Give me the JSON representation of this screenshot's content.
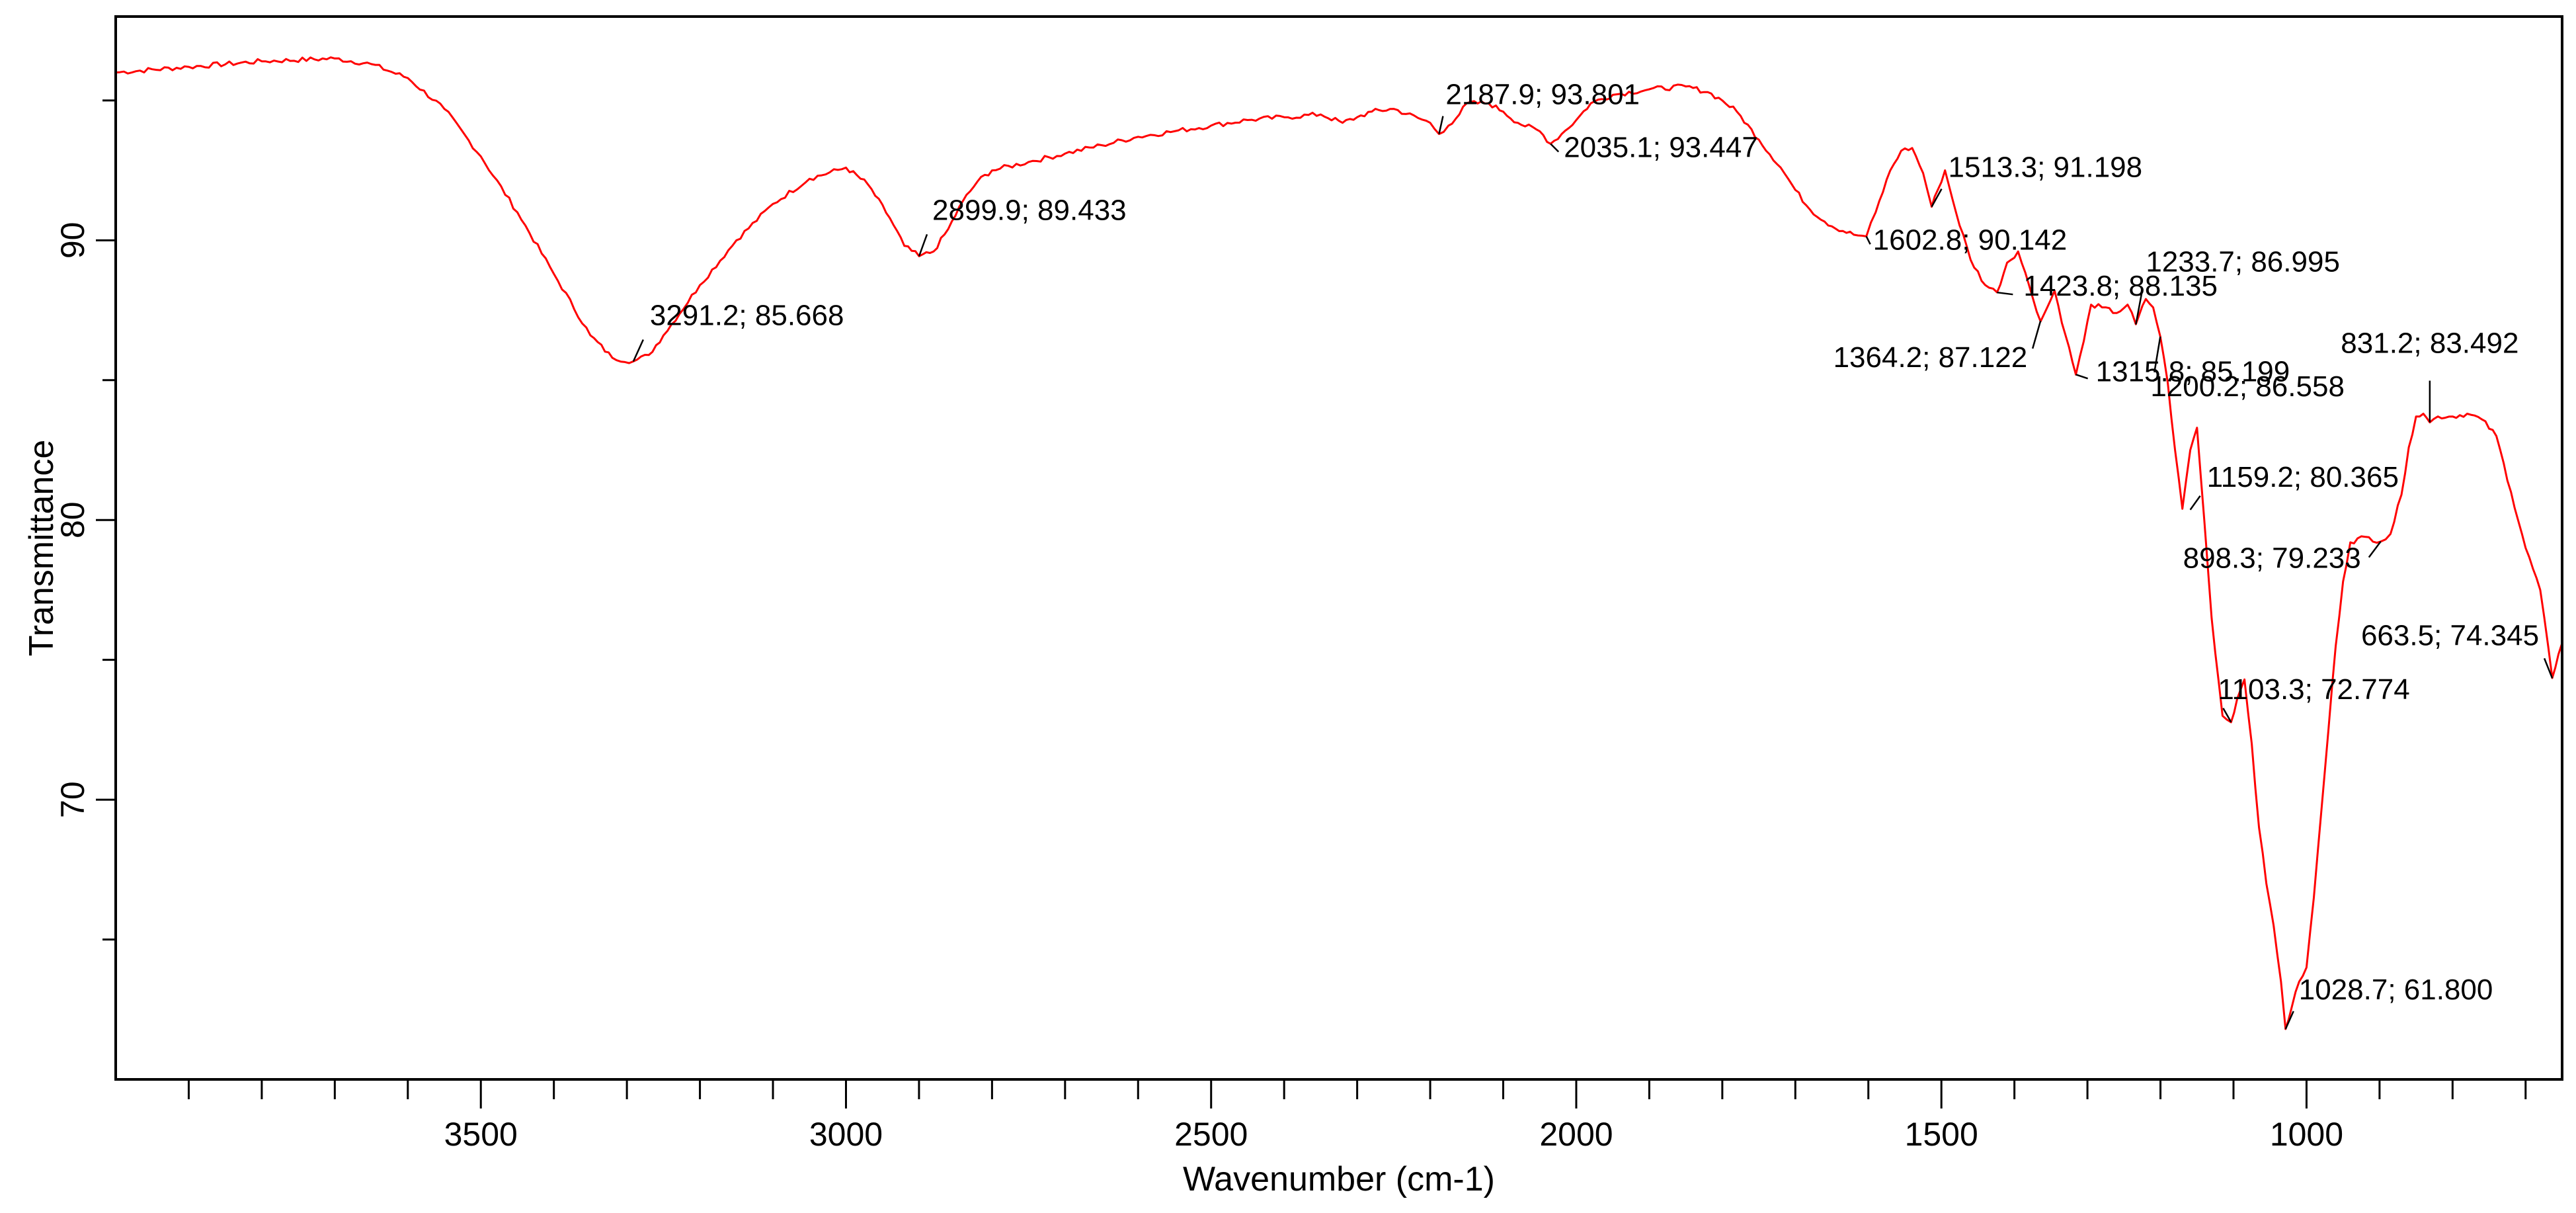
{
  "chart_data": {
    "type": "line",
    "xlabel": "Wavenumber (cm-1)",
    "ylabel": "Transmittance",
    "xlim": [
      4000,
      650
    ],
    "ylim": [
      60,
      98
    ],
    "x_axis_reversed": true,
    "grid": false,
    "line_color": "#ff0000",
    "x_ticks": [
      3500,
      3000,
      2500,
      2000,
      1500,
      1000
    ],
    "x_tick_labels": [
      "3500",
      "3000",
      "2500",
      "2000",
      "1500",
      "1000"
    ],
    "x_minor_ticks": [
      3900,
      3800,
      3700,
      3600,
      3400,
      3300,
      3200,
      3100,
      2900,
      2800,
      2700,
      2600,
      2400,
      2300,
      2200,
      2100,
      1900,
      1800,
      1700,
      1600,
      1400,
      1300,
      1200,
      1100,
      900,
      800,
      700
    ],
    "y_ticks": [
      70,
      80,
      90
    ],
    "y_tick_labels": [
      "70",
      "80",
      "90"
    ],
    "y_minor_ticks": [
      65,
      75,
      85,
      95
    ],
    "series": [
      {
        "x": [
          4000,
          3900,
          3800,
          3700,
          3650,
          3600,
          3550,
          3500,
          3450,
          3400,
          3350,
          3320,
          3291.2,
          3270,
          3250,
          3200,
          3150,
          3100,
          3050,
          3000,
          2970,
          2940,
          2920,
          2899.9,
          2880,
          2860,
          2840,
          2820,
          2800,
          2750,
          2700,
          2650,
          2600,
          2550,
          2500,
          2450,
          2400,
          2350,
          2320,
          2300,
          2280,
          2250,
          2200,
          2187.9,
          2175,
          2160,
          2150,
          2120,
          2100,
          2080,
          2050,
          2035.1,
          2020,
          2000,
          1980,
          1950,
          1900,
          1850,
          1820,
          1800,
          1780,
          1750,
          1720,
          1700,
          1680,
          1650,
          1620,
          1602.8,
          1590,
          1570,
          1555,
          1540,
          1525,
          1513.3,
          1505,
          1495,
          1480,
          1460,
          1440,
          1423.8,
          1410,
          1395,
          1380,
          1364.2,
          1355,
          1345,
          1330,
          1315.8,
          1305,
          1295,
          1280,
          1260,
          1245,
          1233.7,
          1220,
          1210,
          1200.2,
          1190,
          1180,
          1170,
          1159.2,
          1150,
          1140,
          1130,
          1115,
          1103.3,
          1095,
          1085,
          1075,
          1065,
          1055,
          1045,
          1035,
          1028.7,
          1020,
          1010,
          1000,
          990,
          980,
          970,
          960,
          950,
          940,
          920,
          898.3,
          885,
          870,
          860,
          850,
          840,
          831.2,
          820,
          800,
          780,
          760,
          740,
          720,
          700,
          680,
          663.5,
          655,
          650
        ],
        "y": [
          96.0,
          96.2,
          96.4,
          96.5,
          96.3,
          95.8,
          94.7,
          93.0,
          91.0,
          88.8,
          86.6,
          85.8,
          85.67,
          85.9,
          86.6,
          88.4,
          90.0,
          91.3,
          92.2,
          92.6,
          92.0,
          90.8,
          89.8,
          89.43,
          89.6,
          90.4,
          91.4,
          92.1,
          92.5,
          92.8,
          93.1,
          93.4,
          93.7,
          93.9,
          94.1,
          94.3,
          94.4,
          94.5,
          94.2,
          94.4,
          94.6,
          94.7,
          94.2,
          93.8,
          94.1,
          94.5,
          94.9,
          94.9,
          94.6,
          94.2,
          93.9,
          93.45,
          93.8,
          94.3,
          94.9,
          95.2,
          95.4,
          95.5,
          95.3,
          95.0,
          94.6,
          93.6,
          92.6,
          91.8,
          91.1,
          90.5,
          90.2,
          90.14,
          91.0,
          92.5,
          93.2,
          93.3,
          92.4,
          91.2,
          91.8,
          92.5,
          91.0,
          89.3,
          88.4,
          88.14,
          89.2,
          89.6,
          88.4,
          87.1,
          87.6,
          88.2,
          86.6,
          85.2,
          86.4,
          87.7,
          87.6,
          87.4,
          87.7,
          87.0,
          87.9,
          87.6,
          86.56,
          84.9,
          82.5,
          80.4,
          82.5,
          83.3,
          80.0,
          76.5,
          73.0,
          72.77,
          73.6,
          74.3,
          72.0,
          69.0,
          67.0,
          65.5,
          63.5,
          61.8,
          62.6,
          63.5,
          64.0,
          66.5,
          69.5,
          72.5,
          75.5,
          77.8,
          79.2,
          79.4,
          79.23,
          79.5,
          80.9,
          82.6,
          83.7,
          83.8,
          83.49,
          83.7,
          83.7,
          83.8,
          83.6,
          83.0,
          81.0,
          79.0,
          77.5,
          74.35,
          75.2,
          75.6
        ]
      }
    ],
    "annotations": [
      {
        "text": "3291.2; 85.668",
        "x": 3291.2,
        "y": 85.668
      },
      {
        "text": "2899.9; 89.433",
        "x": 2899.9,
        "y": 89.433
      },
      {
        "text": "2187.9; 93.801",
        "x": 2187.9,
        "y": 93.801
      },
      {
        "text": "2035.1; 93.447",
        "x": 2035.1,
        "y": 93.447
      },
      {
        "text": "1513.3; 91.198",
        "x": 1513.3,
        "y": 91.198
      },
      {
        "text": "1602.8; 90.142",
        "x": 1602.8,
        "y": 90.142
      },
      {
        "text": "1233.7; 86.995",
        "x": 1233.7,
        "y": 86.995
      },
      {
        "text": "1423.8; 88.135",
        "x": 1423.8,
        "y": 88.135
      },
      {
        "text": "1364.2; 87.122",
        "x": 1364.2,
        "y": 87.122
      },
      {
        "text": "1315.8; 85.199",
        "x": 1315.8,
        "y": 85.199
      },
      {
        "text": "831.2; 83.492",
        "x": 831.2,
        "y": 83.492
      },
      {
        "text": "1200.2; 86.558",
        "x": 1200.2,
        "y": 86.558
      },
      {
        "text": "1159.2; 80.365",
        "x": 1159.2,
        "y": 80.365
      },
      {
        "text": "898.3; 79.233",
        "x": 898.3,
        "y": 79.233
      },
      {
        "text": "663.5; 74.345",
        "x": 663.5,
        "y": 74.345
      },
      {
        "text": "1103.3; 72.774",
        "x": 1103.3,
        "y": 72.774
      },
      {
        "text": "1028.7; 61.800",
        "x": 1028.7,
        "y": 61.8
      }
    ]
  }
}
